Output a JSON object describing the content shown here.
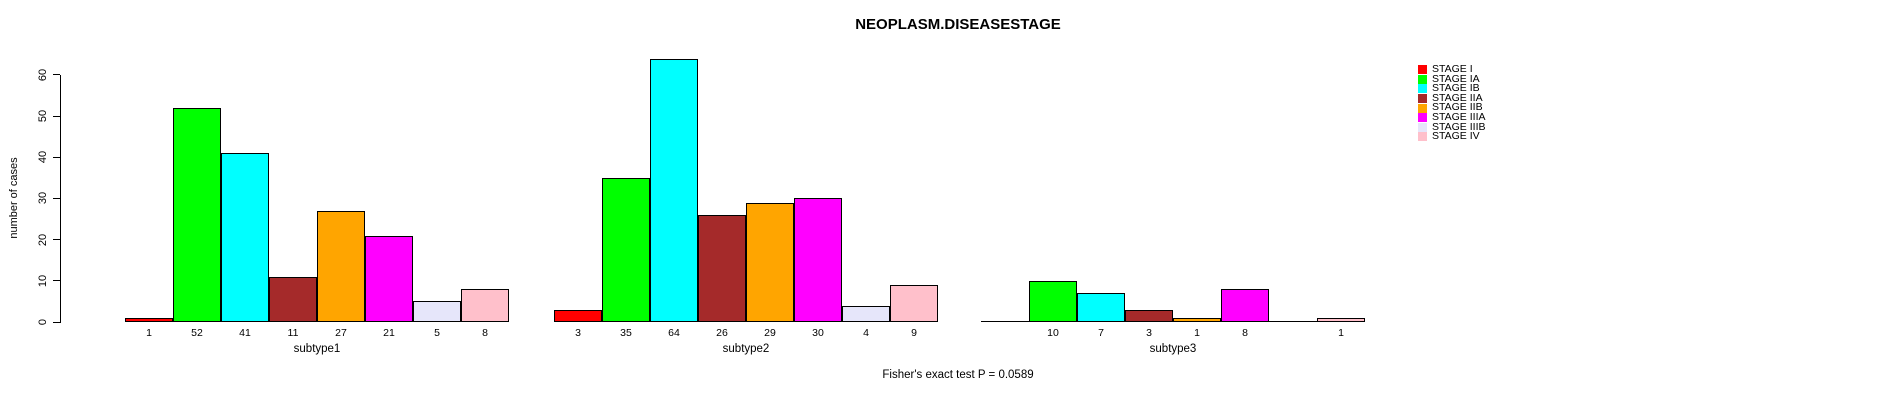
{
  "chart_data": {
    "type": "bar",
    "title": "NEOPLASM.DISEASESTAGE",
    "ylabel": "number of cases",
    "annotation": "Fisher's exact test P = 0.0589",
    "categories": [
      "subtype1",
      "subtype2",
      "subtype3"
    ],
    "yticks": [
      0,
      10,
      20,
      30,
      40,
      50,
      60
    ],
    "ylim": [
      0,
      64
    ],
    "grid": false,
    "legend_position": "right",
    "bar_value_labels_shown": true,
    "series": [
      {
        "name": "STAGE I",
        "color": "#FF0000",
        "values": [
          1,
          3,
          0
        ]
      },
      {
        "name": "STAGE IA",
        "color": "#00FF00",
        "values": [
          52,
          35,
          10
        ]
      },
      {
        "name": "STAGE IB",
        "color": "#00FFFF",
        "values": [
          41,
          64,
          7
        ]
      },
      {
        "name": "STAGE IIA",
        "color": "#A52A2A",
        "values": [
          11,
          26,
          3
        ]
      },
      {
        "name": "STAGE IIB",
        "color": "#FFA500",
        "values": [
          27,
          29,
          1
        ]
      },
      {
        "name": "STAGE IIIA",
        "color": "#FF00FF",
        "values": [
          21,
          30,
          8
        ]
      },
      {
        "name": "STAGE IIIB",
        "color": "#E6E6FA",
        "values": [
          5,
          4,
          0
        ]
      },
      {
        "name": "STAGE IV",
        "color": "#FFC0CB",
        "values": [
          8,
          9,
          1
        ]
      }
    ]
  }
}
